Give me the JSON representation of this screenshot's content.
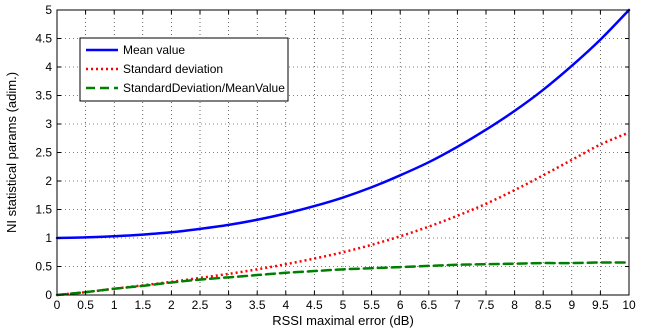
{
  "chart_data": {
    "type": "line",
    "title": "",
    "xlabel": "RSSI maximal error (dB)",
    "ylabel": "NI statistical params (adim.)",
    "xlim": [
      0,
      10
    ],
    "ylim": [
      0,
      5
    ],
    "xticks": [
      0,
      0.5,
      1,
      1.5,
      2,
      2.5,
      3,
      3.5,
      4,
      4.5,
      5,
      5.5,
      6,
      6.5,
      7,
      7.5,
      8,
      8.5,
      9,
      9.5,
      10
    ],
    "xtick_labels": [
      "0",
      "0.5",
      "1",
      "1.5",
      "2",
      "2.5",
      "3",
      "3.5",
      "4",
      "4.5",
      "5",
      "5.5",
      "6",
      "6.5",
      "7",
      "7.5",
      "8",
      "8.5",
      "9",
      "9.5",
      "10"
    ],
    "yticks": [
      0,
      0.5,
      1,
      1.5,
      2,
      2.5,
      3,
      3.5,
      4,
      4.5,
      5
    ],
    "ytick_labels": [
      "0",
      "0.5",
      "1",
      "1.5",
      "2",
      "2.5",
      "3",
      "3.5",
      "4",
      "4.5",
      "5"
    ],
    "grid": true,
    "legend_position": "top-left",
    "x": [
      0,
      0.5,
      1,
      1.5,
      2,
      2.5,
      3,
      3.5,
      4,
      4.5,
      5,
      5.5,
      6,
      6.5,
      7,
      7.5,
      8,
      8.5,
      9,
      9.5,
      10
    ],
    "series": [
      {
        "name": "Mean value",
        "color": "#0000ff",
        "style": "solid",
        "values": [
          1.0,
          1.01,
          1.03,
          1.06,
          1.1,
          1.16,
          1.23,
          1.32,
          1.43,
          1.56,
          1.71,
          1.89,
          2.1,
          2.33,
          2.6,
          2.9,
          3.23,
          3.6,
          4.02,
          4.48,
          5.0
        ]
      },
      {
        "name": "Standard deviation",
        "color": "#ff0000",
        "style": "dotted",
        "values": [
          0.0,
          0.05,
          0.11,
          0.17,
          0.23,
          0.3,
          0.37,
          0.45,
          0.54,
          0.64,
          0.75,
          0.88,
          1.03,
          1.2,
          1.39,
          1.6,
          1.84,
          2.1,
          2.37,
          2.64,
          2.85
        ]
      },
      {
        "name": "StandardDeviation/MeanValue",
        "color": "#008000",
        "style": "dashed",
        "values": [
          0.0,
          0.05,
          0.11,
          0.16,
          0.22,
          0.27,
          0.31,
          0.35,
          0.39,
          0.42,
          0.45,
          0.47,
          0.49,
          0.51,
          0.53,
          0.54,
          0.55,
          0.56,
          0.56,
          0.57,
          0.57
        ]
      }
    ]
  }
}
